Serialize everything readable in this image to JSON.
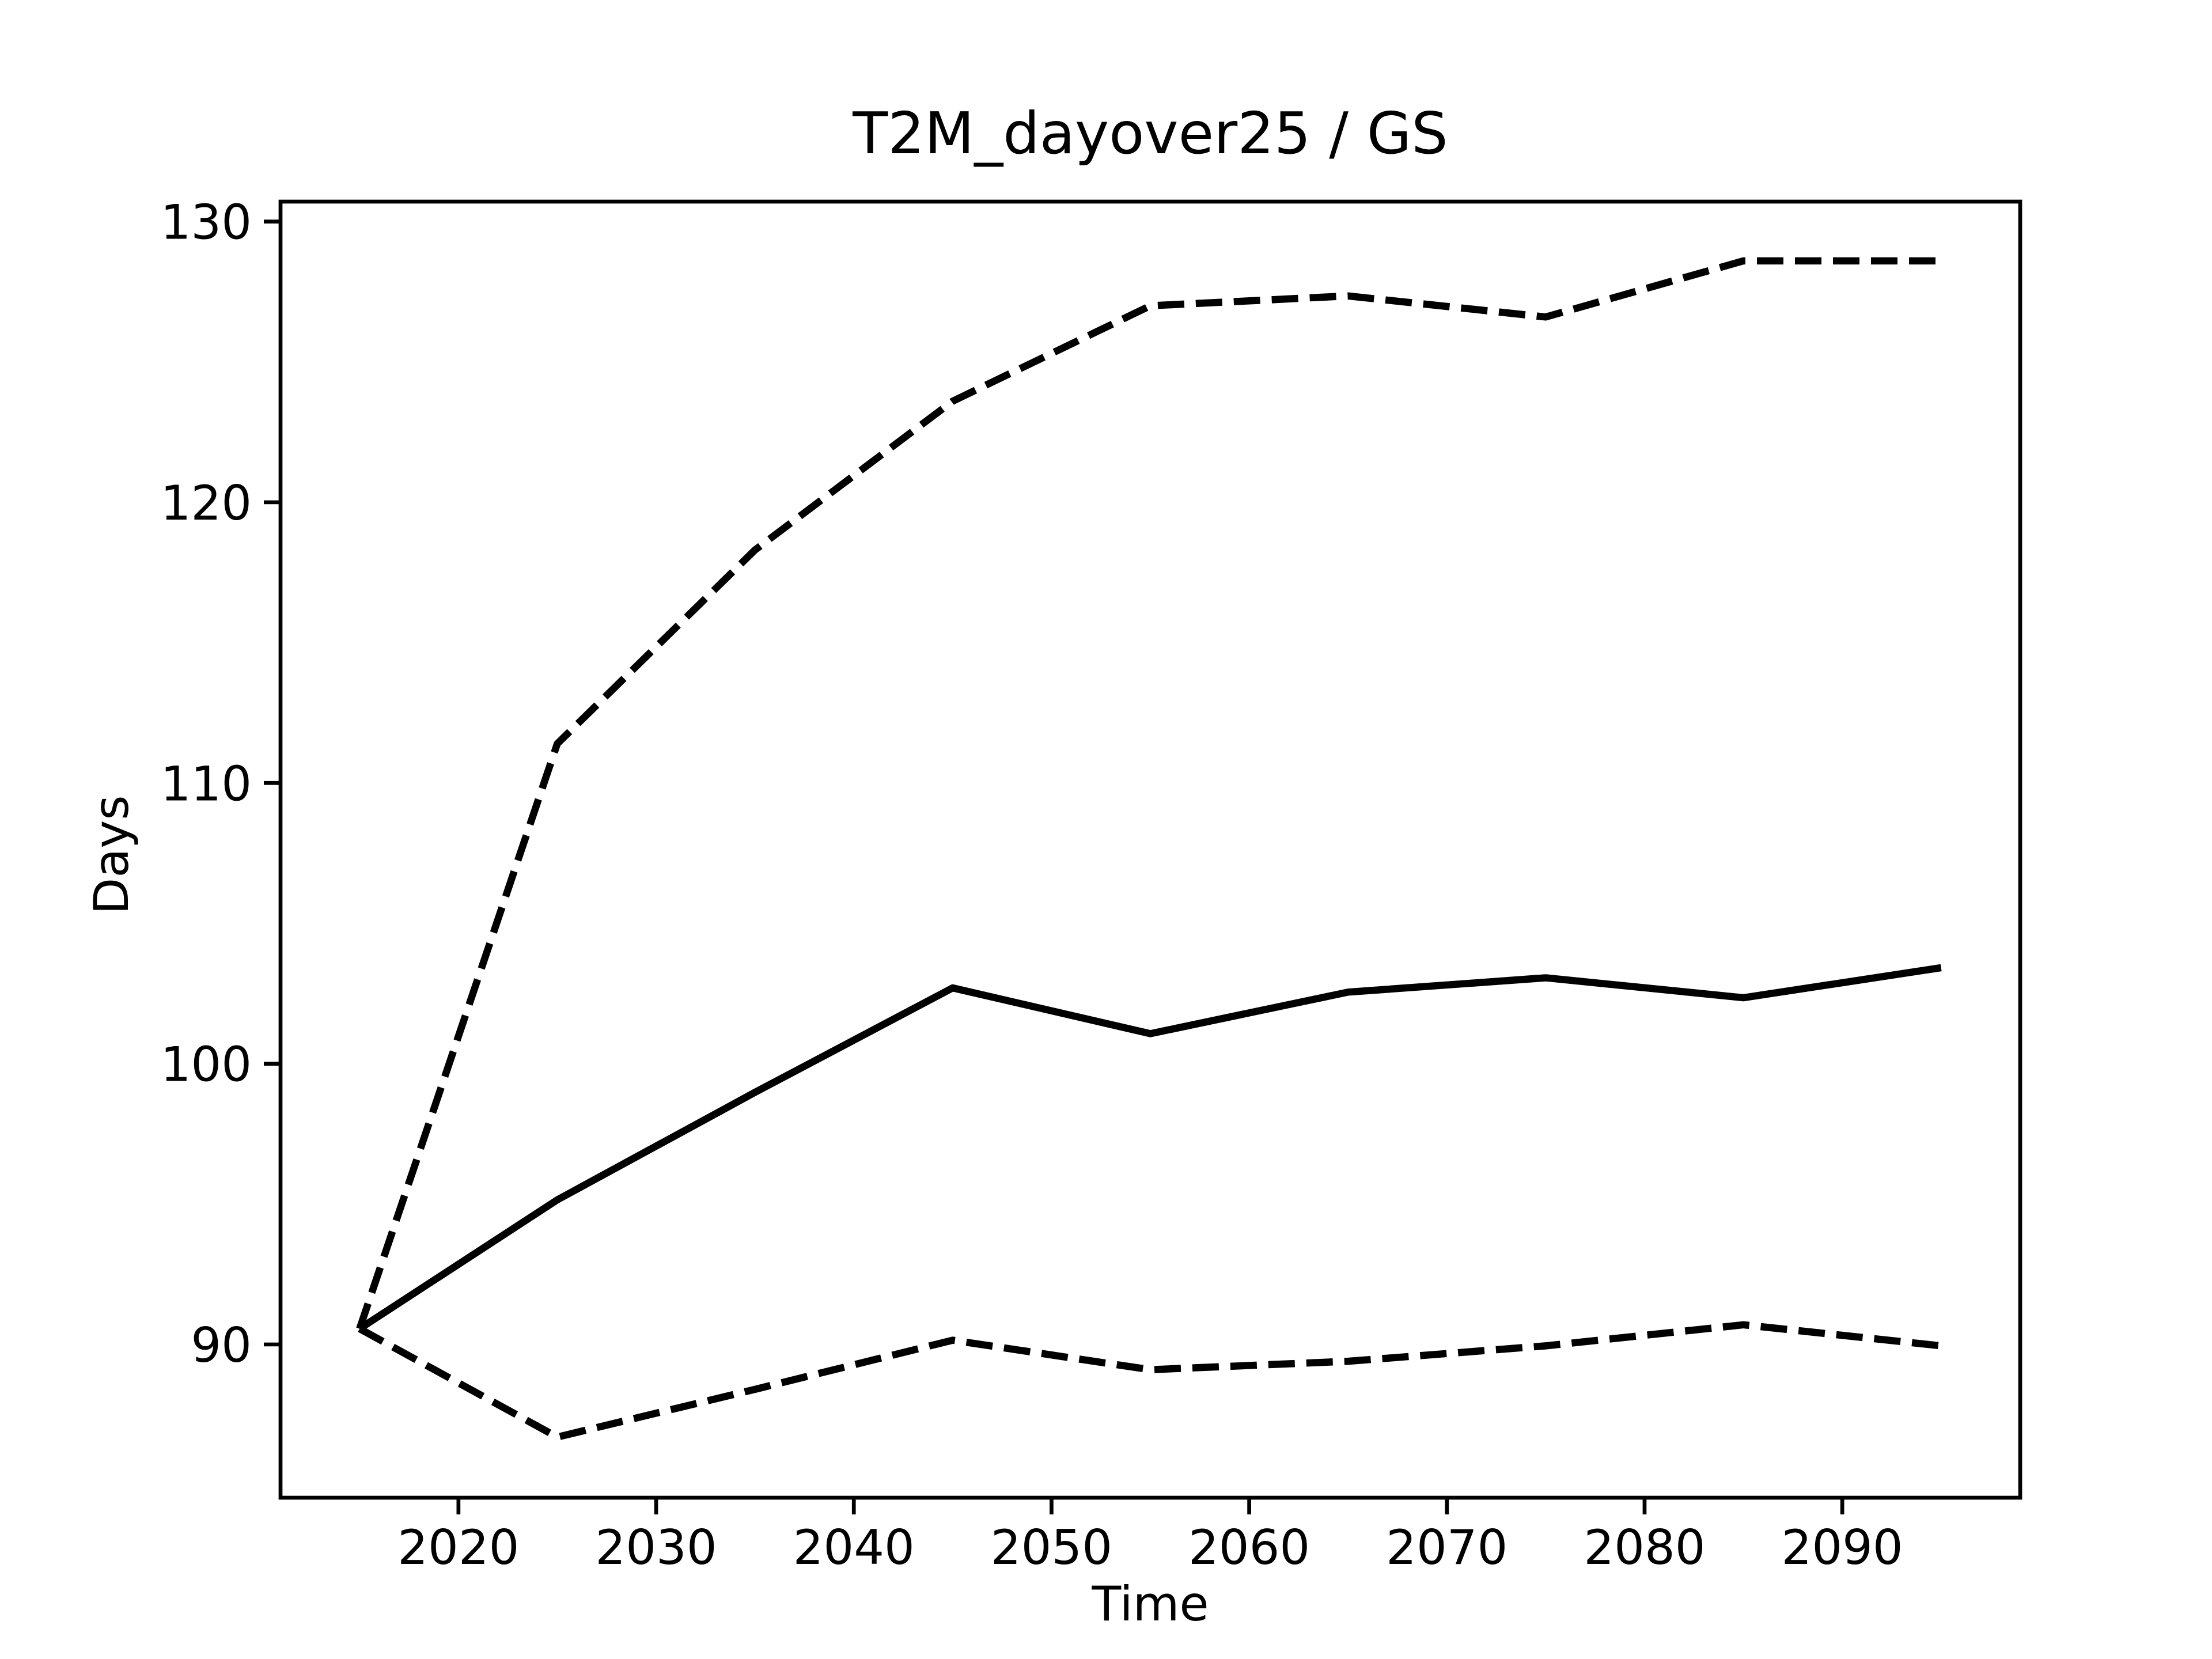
{
  "chart_data": {
    "type": "line",
    "title": "T2M_dayover25 / GS",
    "xlabel": "Time",
    "ylabel": "Days",
    "x": [
      2015,
      2025,
      2035,
      2045,
      2055,
      2065,
      2075,
      2085,
      2095
    ],
    "series": [
      {
        "color": "#000000",
        "linestyle": "solid",
        "values": [
          90.56,
          95.15,
          98.98,
          102.7,
          101.07,
          102.55,
          103.06,
          102.35,
          103.42
        ]
      },
      {
        "color": "#000000",
        "linestyle": "dashed",
        "values": [
          90.56,
          111.4,
          118.3,
          123.6,
          127.0,
          127.35,
          126.6,
          128.6,
          128.6
        ]
      },
      {
        "color": "#000000",
        "linestyle": "dashed",
        "values": [
          90.56,
          86.7,
          88.4,
          90.15,
          89.1,
          89.4,
          89.95,
          90.7,
          89.95
        ]
      }
    ],
    "xlim": [
      2011,
      2099
    ],
    "xticks": [
      2020,
      2030,
      2040,
      2050,
      2060,
      2070,
      2080,
      2090
    ],
    "ylim": [
      84.54,
      130.71
    ],
    "yticks": [
      90,
      100,
      110,
      120,
      130
    ],
    "grid": false
  }
}
